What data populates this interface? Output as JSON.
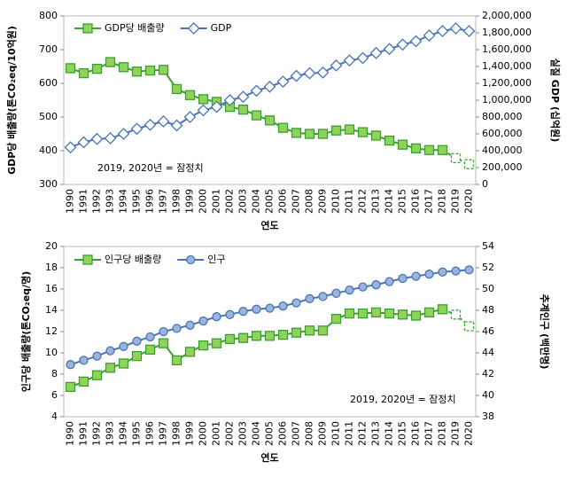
{
  "chart_data": [
    {
      "type": "line",
      "y_label": "GDP당 배출량(톤CO₂eq/10억원)",
      "y2_label": "실질 GDP (십억원)",
      "x_label": "연도",
      "annotation": "2019, 2020년 = 잠정치",
      "categories": [
        "1990",
        "1991",
        "1992",
        "1993",
        "1994",
        "1995",
        "1996",
        "1997",
        "1998",
        "1999",
        "2000",
        "2001",
        "2002",
        "2003",
        "2004",
        "2005",
        "2006",
        "2007",
        "2008",
        "2009",
        "2010",
        "2011",
        "2012",
        "2013",
        "2014",
        "2015",
        "2016",
        "2017",
        "2018",
        "2019",
        "2020"
      ],
      "ylim": [
        300,
        800
      ],
      "yticks": [
        300,
        400,
        500,
        600,
        700,
        800
      ],
      "y2lim": [
        0,
        2000000
      ],
      "y2ticks": [
        0,
        {
          "value": 200000,
          "label": "200,000"
        },
        {
          "value": 400000,
          "label": "400,000"
        },
        {
          "value": 600000,
          "label": "600,000"
        },
        {
          "value": 800000,
          "label": "800,000"
        },
        {
          "value": 1000000,
          "label": "1,000,000"
        },
        {
          "value": 1200000,
          "label": "1,200,000"
        },
        {
          "value": 1400000,
          "label": "1,400,000"
        },
        {
          "value": 1600000,
          "label": "1,600,000"
        },
        {
          "value": 1800000,
          "label": "1,800,000"
        },
        {
          "value": 2000000,
          "label": "2,000,000"
        }
      ],
      "series": [
        {
          "name": "GDP당 배출량",
          "color": "#3aa02e",
          "marker": "square",
          "marker_fill": "#8fd35a",
          "dashed_last": 2,
          "axis": "y",
          "values": [
            645,
            630,
            643,
            663,
            648,
            635,
            638,
            640,
            583,
            565,
            553,
            545,
            530,
            522,
            505,
            490,
            468,
            453,
            450,
            450,
            460,
            463,
            455,
            445,
            430,
            418,
            407,
            402,
            402,
            378,
            360
          ]
        },
        {
          "name": "GDP",
          "color": "#4a74b5",
          "marker": "diamond",
          "marker_fill": "#ffffff",
          "dashed_last": 0,
          "axis": "y2",
          "values": [
            440000,
            500000,
            540000,
            548000,
            600000,
            660000,
            708000,
            748000,
            700000,
            800000,
            880000,
            920000,
            1000000,
            1040000,
            1112000,
            1160000,
            1220000,
            1288000,
            1320000,
            1328000,
            1412000,
            1472000,
            1500000,
            1560000,
            1608000,
            1660000,
            1700000,
            1768000,
            1820000,
            1852000,
            1820000
          ]
        }
      ]
    },
    {
      "type": "line",
      "y_label": "인구당 배출량(톤CO₂eq/명)",
      "y2_label": "추계인구 (백만명)",
      "x_label": "연도",
      "annotation": "2019, 2020년 = 잠정치",
      "categories": [
        "1990",
        "1991",
        "1992",
        "1993",
        "1994",
        "1995",
        "1996",
        "1997",
        "1998",
        "1999",
        "2000",
        "2001",
        "2002",
        "2003",
        "2004",
        "2005",
        "2006",
        "2007",
        "2008",
        "2009",
        "2010",
        "2011",
        "2012",
        "2013",
        "2014",
        "2015",
        "2016",
        "2017",
        "2018",
        "2019",
        "2020"
      ],
      "ylim": [
        4,
        20
      ],
      "yticks": [
        4,
        6,
        8,
        10,
        12,
        14,
        16,
        18,
        20
      ],
      "y2lim": [
        38,
        54
      ],
      "y2ticks": [
        38,
        40,
        42,
        44,
        46,
        48,
        50,
        52,
        54
      ],
      "series": [
        {
          "name": "인구당 배출량",
          "color": "#3aa02e",
          "marker": "square",
          "marker_fill": "#8fd35a",
          "dashed_last": 2,
          "axis": "y",
          "values": [
            6.8,
            7.3,
            7.9,
            8.6,
            9.0,
            9.7,
            10.3,
            10.9,
            9.3,
            10.1,
            10.7,
            10.9,
            11.3,
            11.4,
            11.6,
            11.6,
            11.7,
            11.9,
            12.1,
            12.1,
            13.2,
            13.7,
            13.7,
            13.8,
            13.7,
            13.6,
            13.5,
            13.8,
            14.1,
            13.6,
            12.5
          ]
        },
        {
          "name": "인구",
          "color": "#4a74b5",
          "marker": "circle",
          "marker_fill": "#9bb4de",
          "dashed_last": 0,
          "axis": "y2",
          "values": [
            42.9,
            43.3,
            43.7,
            44.2,
            44.6,
            45.1,
            45.5,
            46.0,
            46.3,
            46.6,
            47.0,
            47.4,
            47.6,
            47.9,
            48.1,
            48.2,
            48.4,
            48.7,
            49.1,
            49.3,
            49.6,
            49.9,
            50.2,
            50.4,
            50.7,
            51.0,
            51.2,
            51.4,
            51.6,
            51.7,
            51.8
          ]
        }
      ]
    }
  ]
}
